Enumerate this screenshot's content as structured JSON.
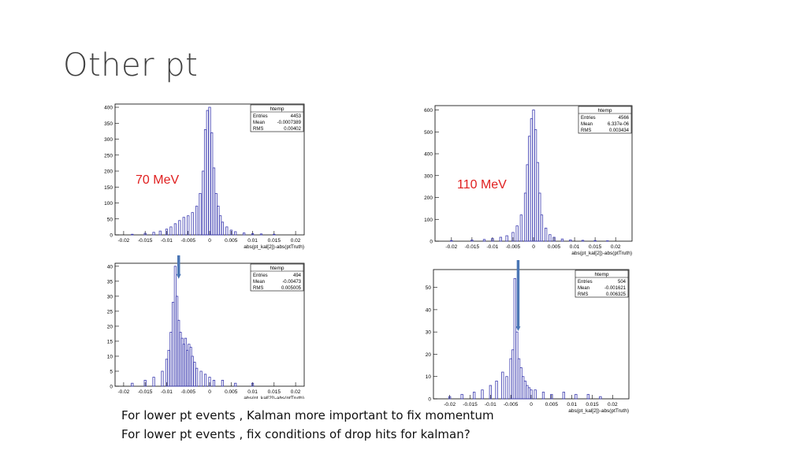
{
  "slide": {
    "title": "Other pt",
    "notes": [
      "For lower pt events , Kalman more important to fix momentum",
      "For lower pt events , fix conditions of drop hits for kalman?"
    ]
  },
  "colors": {
    "hist_line": "#3b3bb0",
    "arrow": "#4a76b5",
    "label_red": "#e02020"
  },
  "chart_data": [
    {
      "type": "bar",
      "panel": "top-left",
      "annotation": "70 MeV",
      "xlabel": "abs(pt_kal[2])-abs(ptTruth)",
      "xlim": [
        -0.022,
        0.022
      ],
      "ylim": [
        0,
        410
      ],
      "xticks": [
        "-0.02",
        "-0.015",
        "-0.01",
        "-0.005",
        "0",
        "0.005",
        "0.01",
        "0.015",
        "0.02"
      ],
      "yticks": [
        "0",
        "50",
        "100",
        "150",
        "200",
        "250",
        "300",
        "350",
        "400"
      ],
      "stats": {
        "name": "htemp",
        "rows": [
          [
            "Entries",
            "4453"
          ],
          [
            "Mean",
            "-0.0007389"
          ],
          [
            "RMS",
            "0.00402"
          ]
        ]
      },
      "bin_width": 0.00044,
      "x": [
        -0.018,
        -0.015,
        -0.013,
        -0.0115,
        -0.01,
        -0.009,
        -0.008,
        -0.007,
        -0.006,
        -0.005,
        -0.004,
        -0.003,
        -0.0022,
        -0.0015,
        -0.001,
        -0.0005,
        0.0,
        0.0005,
        0.001,
        0.0015,
        0.002,
        0.0025,
        0.003,
        0.004,
        0.005,
        0.006,
        0.008,
        0.01,
        0.012,
        0.015
      ],
      "values": [
        2,
        5,
        8,
        12,
        18,
        25,
        35,
        45,
        55,
        60,
        70,
        90,
        130,
        200,
        330,
        390,
        400,
        320,
        210,
        130,
        90,
        60,
        40,
        25,
        15,
        10,
        6,
        4,
        3,
        2
      ]
    },
    {
      "type": "bar",
      "panel": "top-right",
      "annotation": "110 MeV",
      "xlabel": "abs(pt_kal[2])-abs(ptTruth)",
      "xlim": [
        -0.024,
        0.024
      ],
      "ylim": [
        0,
        620
      ],
      "xticks": [
        "-0.02",
        "-0.015",
        "-0.01",
        "-0.005",
        "0",
        "0.005",
        "0.01",
        "0.015",
        "0.02"
      ],
      "yticks": [
        "0",
        "100",
        "200",
        "300",
        "400",
        "500",
        "600"
      ],
      "stats": {
        "name": "htemp",
        "rows": [
          [
            "Entries",
            "4566"
          ],
          [
            "Mean",
            "6.337e-06"
          ],
          [
            "RMS",
            "0.003434"
          ]
        ]
      },
      "bin_width": 0.00048,
      "x": [
        -0.02,
        -0.015,
        -0.012,
        -0.01,
        -0.008,
        -0.0065,
        -0.005,
        -0.004,
        -0.003,
        -0.002,
        -0.0015,
        -0.001,
        -0.0005,
        0.0,
        0.0005,
        0.001,
        0.0015,
        0.002,
        0.003,
        0.004,
        0.005,
        0.007,
        0.009,
        0.012,
        0.015,
        0.018
      ],
      "values": [
        3,
        5,
        8,
        12,
        18,
        25,
        40,
        70,
        120,
        220,
        350,
        480,
        560,
        600,
        510,
        360,
        220,
        120,
        60,
        30,
        18,
        10,
        6,
        4,
        3,
        2
      ]
    },
    {
      "type": "bar",
      "panel": "bottom-left",
      "annotation": "",
      "xlabel": "abs(pt_kal[2])-abs(ptTruth)",
      "xlim": [
        -0.022,
        0.022
      ],
      "ylim": [
        0,
        41
      ],
      "xticks": [
        "-0.02",
        "-0.015",
        "-0.01",
        "-0.005",
        "0",
        "0.005",
        "0.01",
        "0.015",
        "0.02"
      ],
      "yticks": [
        "0",
        "5",
        "10",
        "15",
        "20",
        "25",
        "30",
        "35",
        "40"
      ],
      "stats": {
        "name": "htemp",
        "rows": [
          [
            "Entries",
            "494"
          ],
          [
            "Mean",
            "-0.00473"
          ],
          [
            "RMS",
            "0.005005"
          ]
        ]
      },
      "bin_width": 0.00044,
      "x": [
        -0.018,
        -0.015,
        -0.013,
        -0.011,
        -0.01,
        -0.0095,
        -0.009,
        -0.0085,
        -0.008,
        -0.0076,
        -0.0072,
        -0.0068,
        -0.0064,
        -0.006,
        -0.0056,
        -0.0052,
        -0.0048,
        -0.0044,
        -0.004,
        -0.0035,
        -0.003,
        -0.002,
        -0.001,
        0.0,
        0.001,
        0.003,
        0.006,
        0.01
      ],
      "values": [
        1,
        2,
        3,
        5,
        9,
        12,
        18,
        28,
        40,
        30,
        22,
        18,
        16,
        14,
        16,
        12,
        14,
        13,
        10,
        8,
        6,
        5,
        4,
        3,
        2,
        2,
        1,
        1
      ]
    },
    {
      "type": "bar",
      "panel": "bottom-right",
      "annotation": "",
      "xlabel": "abs(pt_kal[2])-abs(ptTruth)",
      "xlim": [
        -0.024,
        0.024
      ],
      "ylim": [
        0,
        58
      ],
      "xticks": [
        "-0.02",
        "-0.015",
        "-0.01",
        "-0.005",
        "0",
        "0.005",
        "0.01",
        "0.015",
        "0.02"
      ],
      "yticks": [
        "0",
        "10",
        "20",
        "30",
        "40",
        "50"
      ],
      "stats": {
        "name": "htemp",
        "rows": [
          [
            "Entries",
            "504"
          ],
          [
            "Mean",
            "-0.001621"
          ],
          [
            "RMS",
            "0.006325"
          ]
        ]
      },
      "bin_width": 0.00048,
      "x": [
        -0.02,
        -0.017,
        -0.014,
        -0.012,
        -0.01,
        -0.0085,
        -0.007,
        -0.006,
        -0.005,
        -0.0045,
        -0.004,
        -0.0035,
        -0.003,
        -0.0025,
        -0.002,
        -0.0015,
        -0.001,
        -0.0005,
        0.0,
        0.001,
        0.003,
        0.005,
        0.008,
        0.011,
        0.014,
        0.017
      ],
      "values": [
        1,
        2,
        3,
        4,
        6,
        8,
        12,
        10,
        18,
        22,
        54,
        30,
        18,
        14,
        10,
        8,
        6,
        5,
        4,
        4,
        3,
        2,
        3,
        2,
        2,
        1
      ]
    }
  ]
}
